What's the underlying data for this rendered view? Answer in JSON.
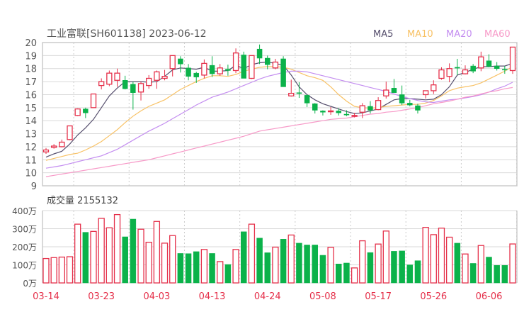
{
  "header": {
    "title": "工业富联[SH601138] 2023-06-12"
  },
  "legend": [
    {
      "label": "MA5",
      "color": "#57506e"
    },
    {
      "label": "MA10",
      "color": "#f8c266"
    },
    {
      "label": "MA20",
      "color": "#c48ef0"
    },
    {
      "label": "MA60",
      "color": "#f79ac8"
    }
  ],
  "volume_header": {
    "title": "成交量 2155132"
  },
  "colors": {
    "up": "#e5304a",
    "down": "#0bb24a",
    "grid": "#d9d9d9",
    "axis_text": "#555555",
    "date_text": "#e5304a"
  },
  "chart_data": [
    {
      "type": "candlestick",
      "title": "工业富联[SH601138] 2023-06-12",
      "ylim": [
        9,
        20
      ],
      "yticks": [
        "20",
        "19",
        "18",
        "17",
        "16",
        "15",
        "14",
        "13",
        "12",
        "11",
        "10",
        "9"
      ],
      "grid": true,
      "legend_position": "top-right",
      "ohlc": [
        [
          11.6,
          11.9,
          11.45,
          11.75
        ],
        [
          11.95,
          12.2,
          11.85,
          12.05
        ],
        [
          12.0,
          12.55,
          11.95,
          12.35
        ],
        [
          12.55,
          13.6,
          12.5,
          13.6
        ],
        [
          14.4,
          14.95,
          14.35,
          14.9
        ],
        [
          14.9,
          15.0,
          14.2,
          14.6
        ],
        [
          15.0,
          16.05,
          15.0,
          16.05
        ],
        [
          16.7,
          17.25,
          16.4,
          17.0
        ],
        [
          16.8,
          17.85,
          16.65,
          17.65
        ],
        [
          17.1,
          18.0,
          16.6,
          17.65
        ],
        [
          17.1,
          17.45,
          16.4,
          16.45
        ],
        [
          16.8,
          17.0,
          14.85,
          16.15
        ],
        [
          16.2,
          17.0,
          15.55,
          16.85
        ],
        [
          16.7,
          17.5,
          16.45,
          17.25
        ],
        [
          17.1,
          17.85,
          16.45,
          17.75
        ],
        [
          17.25,
          17.9,
          17.1,
          17.4
        ],
        [
          18.0,
          19.0,
          17.4,
          19.0
        ],
        [
          18.75,
          18.95,
          17.7,
          18.35
        ],
        [
          18.05,
          18.35,
          17.1,
          17.4
        ],
        [
          17.65,
          17.75,
          16.9,
          17.35
        ],
        [
          17.5,
          18.7,
          17.25,
          18.4
        ],
        [
          18.25,
          18.95,
          17.35,
          17.6
        ],
        [
          17.6,
          18.35,
          17.45,
          18.05
        ],
        [
          17.95,
          18.3,
          17.45,
          17.85
        ],
        [
          17.85,
          19.55,
          17.65,
          19.2
        ],
        [
          19.05,
          19.3,
          17.25,
          17.25
        ],
        [
          17.25,
          19.0,
          17.2,
          19.0
        ],
        [
          19.5,
          19.85,
          18.35,
          18.8
        ],
        [
          18.8,
          19.0,
          17.95,
          18.3
        ],
        [
          18.05,
          18.75,
          17.95,
          18.5
        ],
        [
          18.75,
          18.95,
          16.6,
          16.6
        ],
        [
          15.9,
          17.15,
          15.85,
          16.1
        ],
        [
          16.15,
          16.95,
          15.75,
          16.1
        ],
        [
          15.95,
          16.0,
          15.05,
          15.35
        ],
        [
          15.3,
          15.35,
          14.55,
          14.8
        ],
        [
          14.75,
          14.8,
          14.4,
          14.65
        ],
        [
          14.7,
          15.05,
          14.45,
          14.75
        ],
        [
          14.75,
          14.95,
          14.4,
          14.6
        ],
        [
          14.5,
          14.8,
          14.35,
          14.45
        ],
        [
          14.35,
          14.6,
          14.25,
          14.4
        ],
        [
          14.65,
          15.35,
          14.2,
          15.15
        ],
        [
          15.1,
          15.5,
          14.55,
          14.8
        ],
        [
          14.85,
          15.8,
          14.8,
          15.55
        ],
        [
          15.9,
          17.0,
          15.7,
          16.35
        ],
        [
          16.5,
          17.2,
          16.15,
          16.15
        ],
        [
          16.0,
          16.7,
          15.2,
          15.35
        ],
        [
          15.35,
          15.6,
          15.1,
          15.2
        ],
        [
          15.15,
          15.3,
          14.55,
          14.8
        ],
        [
          16.0,
          16.3,
          15.7,
          16.3
        ],
        [
          16.3,
          17.1,
          16.05,
          16.75
        ],
        [
          17.25,
          18.1,
          17.15,
          17.9
        ],
        [
          17.4,
          18.4,
          16.95,
          18.0
        ],
        [
          18.1,
          18.75,
          17.5,
          18.05
        ],
        [
          17.6,
          18.25,
          17.55,
          17.9
        ],
        [
          18.2,
          18.35,
          17.65,
          17.8
        ],
        [
          18.05,
          19.3,
          17.8,
          18.9
        ],
        [
          18.6,
          19.1,
          18.1,
          18.15
        ],
        [
          18.2,
          18.5,
          17.85,
          18.0
        ],
        [
          17.95,
          18.2,
          17.6,
          17.9
        ],
        [
          17.85,
          19.65,
          17.6,
          19.65
        ]
      ],
      "x_labels": [
        {
          "label": "03-14",
          "index": 0
        },
        {
          "label": "03-23",
          "index": 7
        },
        {
          "label": "04-03",
          "index": 14
        },
        {
          "label": "04-13",
          "index": 21
        },
        {
          "label": "04-24",
          "index": 28
        },
        {
          "label": "05-08",
          "index": 35
        },
        {
          "label": "05-17",
          "index": 42
        },
        {
          "label": "05-26",
          "index": 49
        },
        {
          "label": "06-06",
          "index": 56
        }
      ],
      "series": [
        {
          "name": "MA5",
          "values": [
            11.2,
            11.45,
            11.65,
            12.2,
            12.9,
            13.45,
            14.1,
            15.0,
            15.9,
            16.5,
            17.0,
            17.0,
            17.0,
            16.95,
            17.0,
            17.4,
            17.9,
            18.05,
            18.0,
            17.95,
            18.1,
            17.8,
            17.8,
            17.85,
            18.25,
            18.0,
            18.3,
            18.45,
            18.5,
            18.4,
            18.25,
            17.5,
            16.6,
            16.0,
            15.6,
            15.3,
            15.1,
            14.9,
            14.7,
            14.55,
            14.6,
            14.75,
            14.9,
            15.25,
            15.6,
            15.7,
            15.7,
            15.65,
            15.6,
            15.65,
            16.0,
            16.6,
            17.5,
            17.7,
            17.95,
            18.15,
            18.15,
            18.2,
            18.2,
            18.4
          ]
        },
        {
          "name": "MA10",
          "values": [
            10.95,
            11.1,
            11.25,
            11.4,
            11.5,
            11.75,
            12.05,
            12.4,
            12.85,
            13.3,
            13.85,
            14.35,
            14.75,
            15.1,
            15.35,
            15.6,
            16.0,
            16.4,
            16.7,
            17.0,
            17.25,
            17.45,
            17.45,
            17.4,
            17.55,
            17.8,
            17.95,
            18.1,
            18.15,
            18.15,
            18.1,
            17.95,
            17.7,
            17.45,
            17.3,
            17.1,
            16.6,
            16.0,
            15.5,
            15.1,
            15.0,
            14.95,
            15.0,
            15.1,
            15.15,
            15.2,
            15.25,
            15.25,
            15.35,
            15.55,
            15.9,
            16.3,
            16.5,
            16.6,
            16.7,
            16.9,
            17.2,
            17.5,
            17.8,
            18.15
          ]
        },
        {
          "name": "MA20",
          "values": [
            10.35,
            10.45,
            10.55,
            10.7,
            10.85,
            11.0,
            11.15,
            11.3,
            11.55,
            11.8,
            12.15,
            12.5,
            12.85,
            13.2,
            13.5,
            13.8,
            14.15,
            14.5,
            14.85,
            15.2,
            15.5,
            15.8,
            16.0,
            16.2,
            16.45,
            16.7,
            16.95,
            17.2,
            17.4,
            17.55,
            17.7,
            17.8,
            17.8,
            17.75,
            17.6,
            17.45,
            17.3,
            17.15,
            17.0,
            16.85,
            16.7,
            16.55,
            16.4,
            16.25,
            16.05,
            15.85,
            15.7,
            15.55,
            15.45,
            15.4,
            15.5,
            15.6,
            15.65,
            15.75,
            15.85,
            16.0,
            16.2,
            16.45,
            16.65,
            16.95
          ]
        },
        {
          "name": "MA60",
          "values": [
            9.7,
            9.8,
            9.9,
            10.0,
            10.1,
            10.2,
            10.3,
            10.4,
            10.5,
            10.6,
            10.7,
            10.8,
            10.9,
            11.0,
            11.15,
            11.3,
            11.45,
            11.6,
            11.75,
            11.9,
            12.05,
            12.2,
            12.35,
            12.5,
            12.65,
            12.8,
            13.0,
            13.2,
            13.3,
            13.4,
            13.5,
            13.6,
            13.7,
            13.8,
            13.9,
            14.0,
            14.1,
            14.15,
            14.2,
            14.3,
            14.4,
            14.5,
            14.55,
            14.65,
            14.7,
            14.8,
            14.9,
            15.0,
            15.15,
            15.3,
            15.4,
            15.5,
            15.65,
            15.8,
            15.9,
            16.05,
            16.2,
            16.3,
            16.45,
            16.55
          ]
        }
      ]
    },
    {
      "type": "bar",
      "title": "成交量 2155132",
      "ylim": [
        0,
        400
      ],
      "yunit": "万",
      "yticks": [
        "400万",
        "300万",
        "200万",
        "100万",
        "0万"
      ],
      "grid": true,
      "values": [
        135,
        140,
        143,
        145,
        325,
        280,
        285,
        357,
        305,
        378,
        255,
        353,
        297,
        225,
        340,
        220,
        262,
        163,
        162,
        173,
        185,
        163,
        118,
        102,
        185,
        283,
        325,
        248,
        167,
        198,
        242,
        265,
        220,
        210,
        210,
        153,
        197,
        105,
        110,
        83,
        233,
        168,
        215,
        287,
        175,
        177,
        100,
        123,
        307,
        267,
        303,
        253,
        220,
        160,
        108,
        207,
        143,
        97,
        97,
        215.5
      ],
      "direction": [
        "up",
        "up",
        "up",
        "up",
        "up",
        "down",
        "up",
        "up",
        "up",
        "up",
        "down",
        "down",
        "up",
        "up",
        "up",
        "up",
        "up",
        "down",
        "down",
        "down",
        "up",
        "down",
        "up",
        "down",
        "up",
        "down",
        "up",
        "down",
        "down",
        "up",
        "down",
        "up",
        "down",
        "down",
        "down",
        "down",
        "up",
        "down",
        "down",
        "up",
        "up",
        "down",
        "up",
        "up",
        "down",
        "down",
        "down",
        "down",
        "up",
        "up",
        "up",
        "up",
        "down",
        "up",
        "down",
        "up",
        "down",
        "down",
        "down",
        "up"
      ]
    }
  ]
}
